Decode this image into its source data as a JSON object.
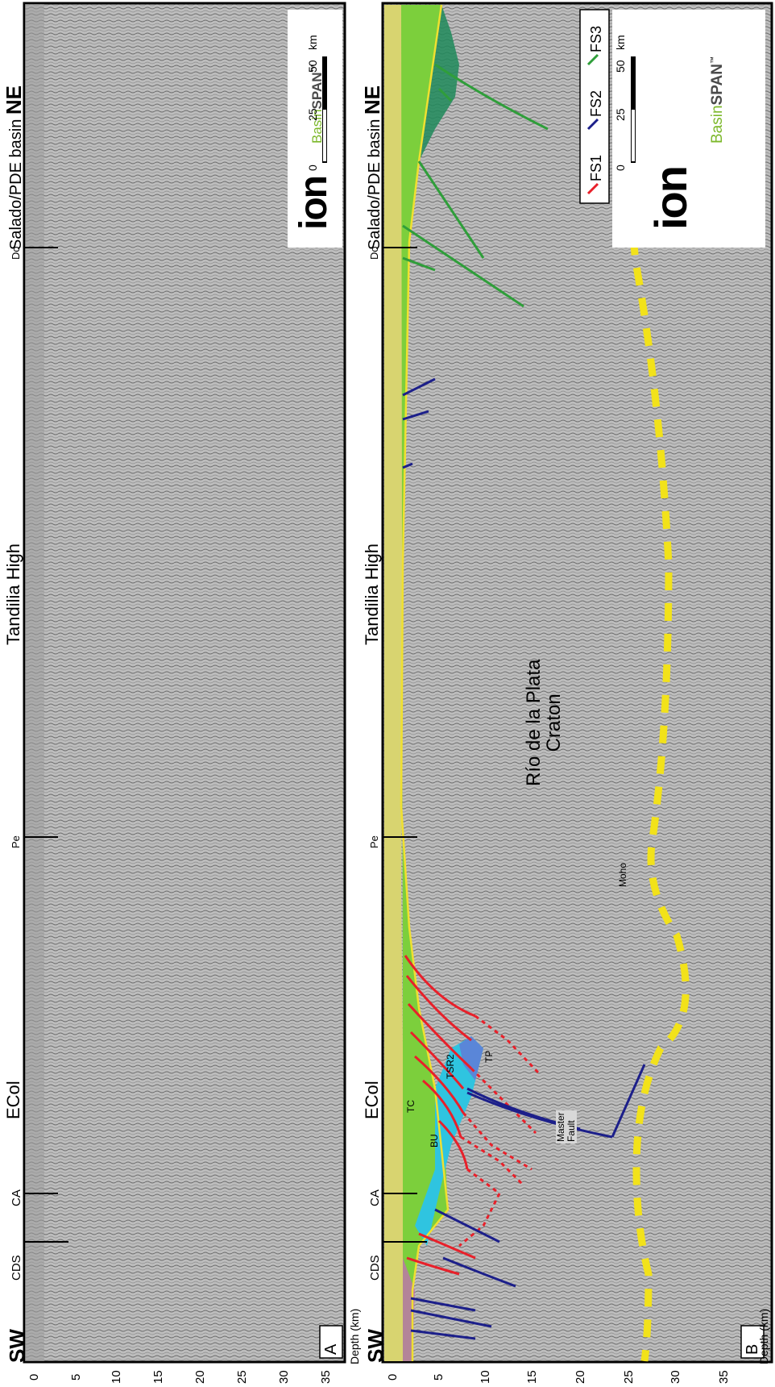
{
  "figure": {
    "left_end": "SW",
    "right_end": "NE",
    "axis_label": "Depth (km)",
    "depth_ticks": [
      "0",
      "5",
      "10",
      "15",
      "20",
      "25",
      "30",
      "35"
    ],
    "top_labels": {
      "tandilia": "Tandilia High",
      "salado": "Salado/PDE basin",
      "ecol": "ECol"
    },
    "well_markers": [
      "Do",
      "Pe",
      "CA",
      "CDS"
    ],
    "scale_bar": {
      "ticks": [
        "0",
        "25",
        "50"
      ],
      "unit": "km"
    },
    "logos": {
      "ion": "ion",
      "basinspan_part1": "Basin",
      "basinspan_part2": "SPAN",
      "trademark": "™"
    }
  },
  "panels": [
    {
      "letter": "A"
    },
    {
      "letter": "B"
    }
  ],
  "panel_b": {
    "legend": [
      {
        "label": "FS1",
        "color": "#e8202a"
      },
      {
        "label": "FS2",
        "color": "#1c1f8a"
      },
      {
        "label": "FS3",
        "color": "#2f9e3a"
      }
    ],
    "labels": {
      "craton_line1": "Río de la Plata",
      "craton_line2": "Craton",
      "moho": "Moho",
      "tc": "TC",
      "bu": "BU",
      "tsr2": "TSR2",
      "tp": "TP",
      "master1": "Master",
      "master2": "Fault"
    }
  },
  "colors": {
    "seismic_bg": "#bdbdbd",
    "fill_yellow": "#d8d470",
    "fill_green": "#7ccf3c",
    "fill_cyan": "#2fc4e0",
    "fill_blue": "#5a86d8",
    "fill_magenta": "#c070b0",
    "moho": "#f2e21a"
  }
}
